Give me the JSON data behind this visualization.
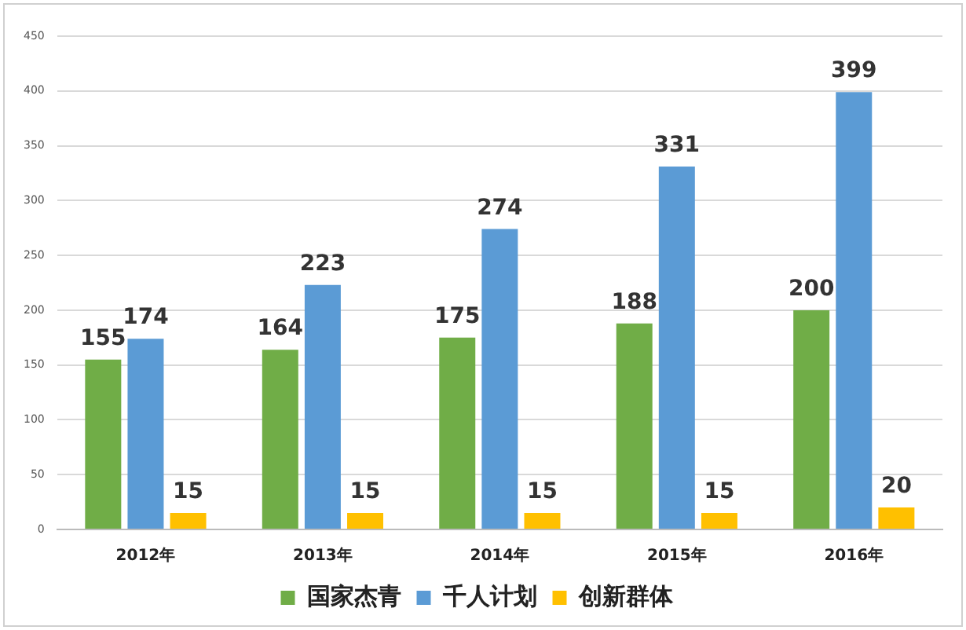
{
  "chart_data": {
    "type": "bar",
    "categories": [
      "2012年",
      "2013年",
      "2014年",
      "2015年",
      "2016年"
    ],
    "series": [
      {
        "name": "国家杰青",
        "color": "#70ad47",
        "values": [
          155,
          164,
          175,
          188,
          200
        ]
      },
      {
        "name": "千人计划",
        "color": "#5b9bd5",
        "values": [
          174,
          223,
          274,
          331,
          399
        ]
      },
      {
        "name": "创新群体",
        "color": "#ffc000",
        "values": [
          15,
          15,
          15,
          15,
          20
        ]
      }
    ],
    "ylim": [
      0,
      450
    ],
    "yticks": [
      0,
      50,
      100,
      150,
      200,
      250,
      300,
      350,
      400,
      450
    ],
    "grid": "y",
    "legend": "bottom",
    "data_labels": true
  }
}
